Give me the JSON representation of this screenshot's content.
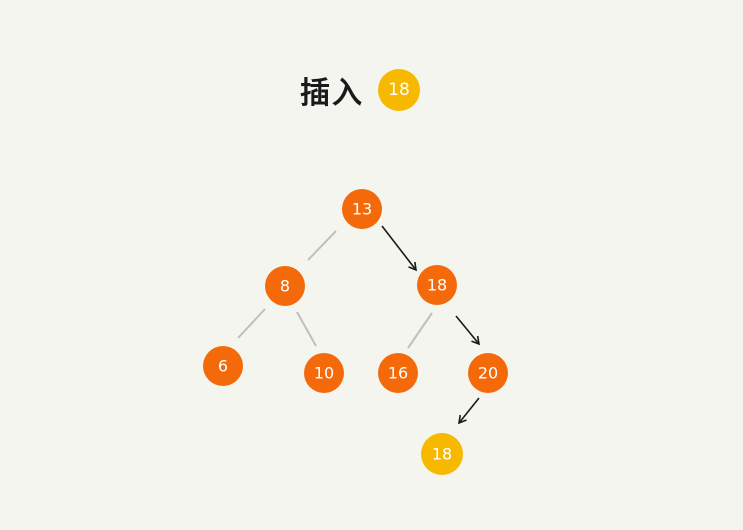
{
  "title": {
    "action": "插入",
    "value": "18"
  },
  "colors": {
    "background": "#f5f5f0",
    "node": "#f46a0b",
    "inserted": "#f7b900",
    "edge": "#bfbfbf",
    "path_edge": "#1a1a1a"
  },
  "nodes": [
    {
      "id": "n13",
      "label": "13"
    },
    {
      "id": "n8",
      "label": "8"
    },
    {
      "id": "n18",
      "label": "18"
    },
    {
      "id": "n6",
      "label": "6"
    },
    {
      "id": "n10",
      "label": "10"
    },
    {
      "id": "n16",
      "label": "16"
    },
    {
      "id": "n20",
      "label": "20"
    },
    {
      "id": "n18new",
      "label": "18"
    }
  ]
}
